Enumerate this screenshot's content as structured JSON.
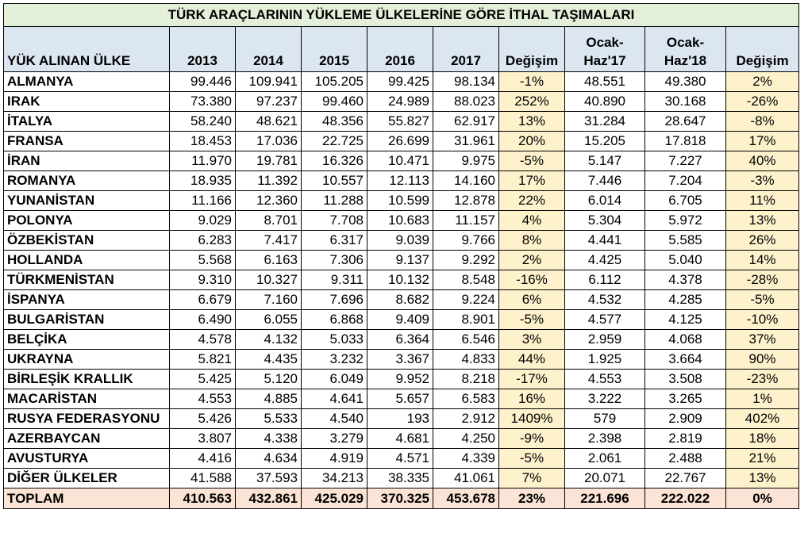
{
  "title": "TÜRK ARAÇLARININ YÜKLEME ÜLKELERİNE GÖRE İTHAL TAŞIMALARI",
  "headers": {
    "country": "YÜK ALINAN ÜLKE",
    "y2013": "2013",
    "y2014": "2014",
    "y2015": "2015",
    "y2016": "2016",
    "y2017": "2017",
    "change1": "Değişim",
    "h17_line1": "Ocak-",
    "h17_line2": "Haz'17",
    "h18_line1": "Ocak-",
    "h18_line2": "Haz'18",
    "change2": "Değişim"
  },
  "rows": [
    {
      "country": "ALMANYA",
      "y2013": "99.446",
      "y2014": "109.941",
      "y2015": "105.205",
      "y2016": "99.425",
      "y2017": "98.134",
      "change1": "-1%",
      "h17": "48.551",
      "h18": "49.380",
      "change2": "2%"
    },
    {
      "country": "IRAK",
      "y2013": "73.380",
      "y2014": "97.237",
      "y2015": "99.460",
      "y2016": "24.989",
      "y2017": "88.023",
      "change1": "252%",
      "h17": "40.890",
      "h18": "30.168",
      "change2": "-26%"
    },
    {
      "country": "İTALYA",
      "y2013": "58.240",
      "y2014": "48.621",
      "y2015": "48.356",
      "y2016": "55.827",
      "y2017": "62.917",
      "change1": "13%",
      "h17": "31.284",
      "h18": "28.647",
      "change2": "-8%"
    },
    {
      "country": "FRANSA",
      "y2013": "18.453",
      "y2014": "17.036",
      "y2015": "22.725",
      "y2016": "26.699",
      "y2017": "31.961",
      "change1": "20%",
      "h17": "15.205",
      "h18": "17.818",
      "change2": "17%"
    },
    {
      "country": "İRAN",
      "y2013": "11.970",
      "y2014": "19.781",
      "y2015": "16.326",
      "y2016": "10.471",
      "y2017": "9.975",
      "change1": "-5%",
      "h17": "5.147",
      "h18": "7.227",
      "change2": "40%"
    },
    {
      "country": "ROMANYA",
      "y2013": "18.935",
      "y2014": "11.392",
      "y2015": "10.557",
      "y2016": "12.113",
      "y2017": "14.160",
      "change1": "17%",
      "h17": "7.446",
      "h18": "7.204",
      "change2": "-3%"
    },
    {
      "country": "YUNANİSTAN",
      "y2013": "11.166",
      "y2014": "12.360",
      "y2015": "11.288",
      "y2016": "10.599",
      "y2017": "12.878",
      "change1": "22%",
      "h17": "6.014",
      "h18": "6.705",
      "change2": "11%"
    },
    {
      "country": "POLONYA",
      "y2013": "9.029",
      "y2014": "8.701",
      "y2015": "7.708",
      "y2016": "10.683",
      "y2017": "11.157",
      "change1": "4%",
      "h17": "5.304",
      "h18": "5.972",
      "change2": "13%"
    },
    {
      "country": "ÖZBEKİSTAN",
      "y2013": "6.283",
      "y2014": "7.417",
      "y2015": "6.317",
      "y2016": "9.039",
      "y2017": "9.766",
      "change1": "8%",
      "h17": "4.441",
      "h18": "5.585",
      "change2": "26%"
    },
    {
      "country": "HOLLANDA",
      "y2013": "5.568",
      "y2014": "6.163",
      "y2015": "7.306",
      "y2016": "9.137",
      "y2017": "9.292",
      "change1": "2%",
      "h17": "4.425",
      "h18": "5.040",
      "change2": "14%"
    },
    {
      "country": "TÜRKMENİSTAN",
      "y2013": "9.310",
      "y2014": "10.327",
      "y2015": "9.311",
      "y2016": "10.132",
      "y2017": "8.548",
      "change1": "-16%",
      "h17": "6.112",
      "h18": "4.378",
      "change2": "-28%"
    },
    {
      "country": "İSPANYA",
      "y2013": "6.679",
      "y2014": "7.160",
      "y2015": "7.696",
      "y2016": "8.682",
      "y2017": "9.224",
      "change1": "6%",
      "h17": "4.532",
      "h18": "4.285",
      "change2": "-5%"
    },
    {
      "country": "BULGARİSTAN",
      "y2013": "6.490",
      "y2014": "6.055",
      "y2015": "6.868",
      "y2016": "9.409",
      "y2017": "8.901",
      "change1": "-5%",
      "h17": "4.577",
      "h18": "4.125",
      "change2": "-10%"
    },
    {
      "country": "BELÇİKA",
      "y2013": "4.578",
      "y2014": "4.132",
      "y2015": "5.033",
      "y2016": "6.364",
      "y2017": "6.546",
      "change1": "3%",
      "h17": "2.959",
      "h18": "4.068",
      "change2": "37%"
    },
    {
      "country": "UKRAYNA",
      "y2013": "5.821",
      "y2014": "4.435",
      "y2015": "3.232",
      "y2016": "3.367",
      "y2017": "4.833",
      "change1": "44%",
      "h17": "1.925",
      "h18": "3.664",
      "change2": "90%"
    },
    {
      "country": "BİRLEŞİK KRALLIK",
      "y2013": "5.425",
      "y2014": "5.120",
      "y2015": "6.049",
      "y2016": "9.952",
      "y2017": "8.218",
      "change1": "-17%",
      "h17": "4.553",
      "h18": "3.508",
      "change2": "-23%"
    },
    {
      "country": "MACARİSTAN",
      "y2013": "4.553",
      "y2014": "4.885",
      "y2015": "4.641",
      "y2016": "5.657",
      "y2017": "6.583",
      "change1": "16%",
      "h17": "3.222",
      "h18": "3.265",
      "change2": "1%"
    },
    {
      "country": "RUSYA FEDERASYONU",
      "y2013": "5.426",
      "y2014": "5.533",
      "y2015": "4.540",
      "y2016": "193",
      "y2017": "2.912",
      "change1": "1409%",
      "h17": "579",
      "h18": "2.909",
      "change2": "402%"
    },
    {
      "country": "AZERBAYCAN",
      "y2013": "3.807",
      "y2014": "4.338",
      "y2015": "3.279",
      "y2016": "4.681",
      "y2017": "4.250",
      "change1": "-9%",
      "h17": "2.398",
      "h18": "2.819",
      "change2": "18%"
    },
    {
      "country": "AVUSTURYA",
      "y2013": "4.416",
      "y2014": "4.634",
      "y2015": "4.919",
      "y2016": "4.571",
      "y2017": "4.339",
      "change1": "-5%",
      "h17": "2.061",
      "h18": "2.488",
      "change2": "21%"
    },
    {
      "country": "DİĞER ÜLKELER",
      "y2013": "41.588",
      "y2014": "37.593",
      "y2015": "34.213",
      "y2016": "38.335",
      "y2017": "41.061",
      "change1": "7%",
      "h17": "20.071",
      "h18": "22.767",
      "change2": "13%"
    }
  ],
  "total": {
    "country": "TOPLAM",
    "y2013": "410.563",
    "y2014": "432.861",
    "y2015": "425.029",
    "y2016": "370.325",
    "y2017": "453.678",
    "change1": "23%",
    "h17": "221.696",
    "h18": "222.022",
    "change2": "0%"
  },
  "colors": {
    "title_bg": "#e4efd9",
    "header_bg": "#dce6f1",
    "change_bg": "#fdf2cc",
    "total_bg": "#fbe4d6"
  }
}
